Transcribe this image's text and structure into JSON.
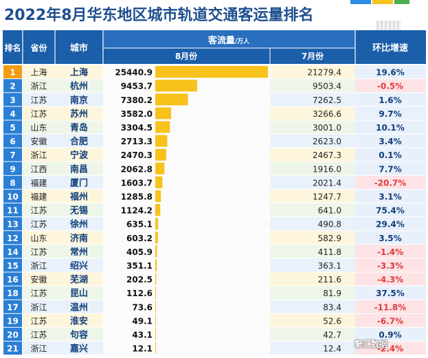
{
  "title": "2022年8月华东地区城市轨道交通客运量排名",
  "watermark": "聚汇数据",
  "colors": {
    "header": "#1b5ea9",
    "bar": "#f8c21c",
    "ring_up": "#1e7ac8",
    "ring_down": "#e23a3a",
    "text_head": "#ffffff"
  },
  "headers": {
    "rank": "排名",
    "province": "省份",
    "city": "城市",
    "flow_group": "客流量",
    "flow_unit": "/万人",
    "aug": "8月份",
    "jul": "7月份",
    "mom": "环比增速"
  },
  "chart_data": {
    "type": "bar",
    "title": "2022年8月华东地区城市轨道交通客运量排名",
    "unit": "万人",
    "rows": [
      {
        "rank": "1",
        "province": "上海",
        "city": "上海",
        "aug": "25440.9",
        "jul": "21279.4",
        "mom": "19.6%"
      },
      {
        "rank": "2",
        "province": "浙江",
        "city": "杭州",
        "aug": "9453.7",
        "jul": "9503.4",
        "mom": "-0.5%"
      },
      {
        "rank": "3",
        "province": "江苏",
        "city": "南京",
        "aug": "7380.2",
        "jul": "7262.5",
        "mom": "1.6%"
      },
      {
        "rank": "4",
        "province": "江苏",
        "city": "苏州",
        "aug": "3582.0",
        "jul": "3266.6",
        "mom": "9.7%"
      },
      {
        "rank": "5",
        "province": "山东",
        "city": "青岛",
        "aug": "3304.5",
        "jul": "3001.0",
        "mom": "10.1%"
      },
      {
        "rank": "6",
        "province": "安徽",
        "city": "合肥",
        "aug": "2713.3",
        "jul": "2623.0",
        "mom": "3.4%"
      },
      {
        "rank": "7",
        "province": "浙江",
        "city": "宁波",
        "aug": "2470.3",
        "jul": "2467.3",
        "mom": "0.1%"
      },
      {
        "rank": "9",
        "province": "江西",
        "city": "南昌",
        "aug": "2062.8",
        "jul": "1916.0",
        "mom": "7.7%"
      },
      {
        "rank": "8",
        "province": "福建",
        "city": "厦门",
        "aug": "1603.7",
        "jul": "2021.4",
        "mom": "-20.7%"
      },
      {
        "rank": "10",
        "province": "福建",
        "city": "福州",
        "aug": "1285.8",
        "jul": "1247.7",
        "mom": "3.1%"
      },
      {
        "rank": "11",
        "province": "江苏",
        "city": "无锡",
        "aug": "1124.2",
        "jul": "641.0",
        "mom": "75.4%"
      },
      {
        "rank": "13",
        "province": "江苏",
        "city": "徐州",
        "aug": "635.1",
        "jul": "490.8",
        "mom": "29.4%"
      },
      {
        "rank": "12",
        "province": "山东",
        "city": "济南",
        "aug": "603.2",
        "jul": "582.9",
        "mom": "3.5%"
      },
      {
        "rank": "14",
        "province": "江苏",
        "city": "常州",
        "aug": "405.9",
        "jul": "411.8",
        "mom": "-1.4%"
      },
      {
        "rank": "15",
        "province": "浙江",
        "city": "绍兴",
        "aug": "351.1",
        "jul": "363.1",
        "mom": "-3.3%"
      },
      {
        "rank": "16",
        "province": "安徽",
        "city": "芜湖",
        "aug": "202.5",
        "jul": "211.6",
        "mom": "-4.3%"
      },
      {
        "rank": "18",
        "province": "江苏",
        "city": "昆山",
        "aug": "112.6",
        "jul": "81.9",
        "mom": "37.5%"
      },
      {
        "rank": "17",
        "province": "浙江",
        "city": "温州",
        "aug": "73.6",
        "jul": "83.4",
        "mom": "-11.8%"
      },
      {
        "rank": "19",
        "province": "江苏",
        "city": "淮安",
        "aug": "49.1",
        "jul": "52.6",
        "mom": "-6.7%"
      },
      {
        "rank": "20",
        "province": "江苏",
        "city": "句容",
        "aug": "43.1",
        "jul": "42.7",
        "mom": "0.9%"
      },
      {
        "rank": "21",
        "province": "浙江",
        "city": "嘉兴",
        "aug": "12.1",
        "jul": "12.4",
        "mom": "-2.4%"
      }
    ]
  }
}
